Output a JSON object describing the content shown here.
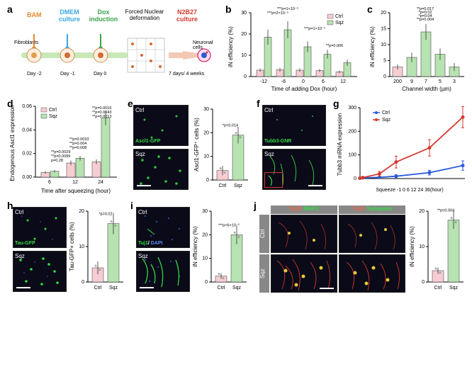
{
  "colors": {
    "ctrl": "#f6cdd3",
    "sqz": "#b7e2b1",
    "ctrl_line": "#2b5bd7",
    "sqz_line": "#d33a2f",
    "bg": "#ffffff",
    "axis": "#000000",
    "bam": "#e88a2a",
    "dmem": "#3aa6e0",
    "dox": "#3aa34a",
    "n2b27": "#d33a2f"
  },
  "panel_a": {
    "label": "a",
    "bam": "BAM",
    "dmem": "DMEM culture",
    "dox": "Dox induction",
    "deform": "Forced Nuclear deformation",
    "n2b27": "N2B27 culture",
    "fibro": "Fibroblasts",
    "neuron": "Neuronal cells",
    "days": [
      "Day -2",
      "Day -1",
      "Day 0"
    ],
    "duration": "7 days/ 4 weeks"
  },
  "panel_b": {
    "label": "b",
    "ylabel": "iN efficiency (%)",
    "xlabel": "Time of adding Dox (hour)",
    "categories": [
      "-12",
      "-6",
      "0",
      "6",
      "12"
    ],
    "ctrl": [
      3.0,
      3.2,
      3.0,
      2.8,
      2.2
    ],
    "sqz": [
      18.5,
      22.0,
      14.0,
      10.5,
      6.5
    ],
    "ctrl_err": [
      0.8,
      0.9,
      0.8,
      0.7,
      0.6
    ],
    "sqz_err": [
      3.5,
      4.0,
      2.5,
      2.0,
      1.5
    ],
    "ylim": [
      0,
      30
    ],
    "ytick": 10,
    "sig": [
      "***p=2×10⁻⁵",
      "***p=1×10⁻⁵",
      "***p=1×10⁻⁵",
      "**p=0.006"
    ],
    "legend": [
      "Ctrl",
      "Sqz"
    ]
  },
  "panel_c": {
    "label": "c",
    "ylabel": "iN efficiency (%)",
    "xlabel": "Channel width (µm)",
    "categories": [
      "200",
      "9",
      "7",
      "5",
      "3"
    ],
    "values": [
      3.0,
      6.0,
      14.0,
      7.0,
      3.0
    ],
    "err": [
      0.8,
      1.5,
      2.5,
      1.8,
      1.2
    ],
    "colors_idx": [
      "ctrl",
      "sqz",
      "sqz",
      "sqz",
      "sqz"
    ],
    "ylim": [
      0,
      20
    ],
    "ytick": 5,
    "sig": [
      "*p=0.049",
      "**p=0.003",
      "**p=0.017",
      "*p=0.02",
      "*p=0.04",
      "**p=0.004"
    ]
  },
  "panel_d": {
    "label": "d",
    "ylabel": "Endogenous Ascl1 expression",
    "xlabel": "Time after squeezing (hour)",
    "categories": [
      "6",
      "12",
      "24"
    ],
    "ctrl": [
      0.004,
      0.012,
      0.013
    ],
    "sqz": [
      0.005,
      0.016,
      0.05
    ],
    "ctrl_err": [
      0.001,
      0.002,
      0.002
    ],
    "sqz_err": [
      0.001,
      0.002,
      0.006
    ],
    "ylim": [
      0,
      0.06
    ],
    "ytick": 0.02,
    "sig_pairs": [
      "p=0.28",
      "**p=0.0095",
      "**p=0.0029",
      "**p=0.008",
      "**p=0.004",
      "**p=0.0033",
      "**p=0.0013",
      "**p=0.0043",
      "**p=0.0016"
    ],
    "legend": [
      "Ctrl",
      "Sqz"
    ]
  },
  "panel_e": {
    "label": "e",
    "marker": "Ascl1-GFP",
    "ylabel": "Ascl1-GFP⁺ cells (%)",
    "ctrl": 4.0,
    "sqz": 19.0,
    "ctrl_err": 2.0,
    "sqz_err": 3.5,
    "sig": "*p=0.014",
    "ylim": [
      0,
      30
    ],
    "ytick": 10,
    "xlabels": [
      "Ctrl",
      "Sqz"
    ]
  },
  "panel_f": {
    "label": "f",
    "marker": "Tubb3-GNR",
    "rows": [
      "Ctrl",
      "Sqz"
    ]
  },
  "panel_g": {
    "label": "g",
    "ylabel": "Tubb3 mRNA expression",
    "xlabel": "Squeeze -1      0      6      12      24    36(hour)",
    "x": [
      -1,
      0,
      6,
      12,
      24,
      36
    ],
    "ctrl_y": [
      2,
      3,
      5,
      10,
      25,
      55
    ],
    "sqz_y": [
      2,
      4,
      20,
      70,
      130,
      260
    ],
    "ctrl_err": [
      2,
      3,
      4,
      6,
      10,
      20
    ],
    "sqz_err": [
      3,
      4,
      10,
      25,
      35,
      45
    ],
    "ylim": [
      0,
      300
    ],
    "ytick": 100,
    "legend": [
      "Ctrl",
      "Sqz"
    ]
  },
  "panel_h": {
    "label": "h",
    "marker": "Tau-GFP",
    "ylabel": "Tau-GFP+ cells (%)",
    "ctrl": 4.0,
    "sqz": 16.5,
    "ctrl_err": 1.8,
    "sqz_err": 3.0,
    "sig": "*p=0.02",
    "ylim": [
      0,
      20
    ],
    "ytick": 10,
    "xlabels": [
      "Ctrl",
      "Sqz"
    ]
  },
  "panel_i": {
    "label": "i",
    "marker": "Tuj1/ DAPI",
    "ylabel": "iN efficiency (%)",
    "ctrl": 2.5,
    "sqz": 20.0,
    "ctrl_err": 1.2,
    "sqz_err": 4.0,
    "sig": "***p=6×10⁻⁵",
    "ylim": [
      0,
      30
    ],
    "ytick": 10,
    "xlabels": [
      "Ctrl",
      "Sqz"
    ]
  },
  "panel_j": {
    "label": "j",
    "col_labels": [
      "Tuj1/ ",
      "MAP2",
      "Tuj1/ ",
      "Synapsin"
    ],
    "col1_a": "Tuj1/ ",
    "col1_b": "MAP2",
    "col2_a": "Tuj1/ ",
    "col2_b": "Synapsin",
    "rows": [
      "Ctrl",
      "Sqz"
    ],
    "ylabel": "iN efficiency (%)",
    "ctrl": 3.2,
    "sqz": 17.5,
    "ctrl_err": 0.9,
    "sqz_err": 2.5,
    "sig": "**p=0.004",
    "ylim": [
      0,
      20
    ],
    "ytick": 10,
    "xlabels": [
      "Ctrl",
      "Sqz"
    ]
  }
}
